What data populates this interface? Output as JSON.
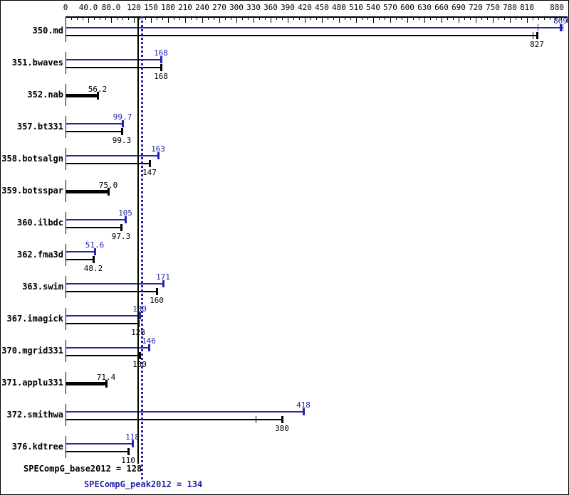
{
  "chart_data": {
    "type": "bar",
    "orientation": "horizontal",
    "title": "",
    "axis": {
      "min": 0,
      "max": 880,
      "minor_step": 10,
      "position": "top",
      "ticks": [
        {
          "v": 0,
          "label": "0"
        },
        {
          "v": 40,
          "label": "40.0"
        },
        {
          "v": 80,
          "label": "80.0"
        },
        {
          "v": 120,
          "label": "120"
        },
        {
          "v": 150,
          "label": "150"
        },
        {
          "v": 180,
          "label": "180"
        },
        {
          "v": 210,
          "label": "210"
        },
        {
          "v": 240,
          "label": "240"
        },
        {
          "v": 270,
          "label": "270"
        },
        {
          "v": 300,
          "label": "300"
        },
        {
          "v": 330,
          "label": "330"
        },
        {
          "v": 360,
          "label": "360"
        },
        {
          "v": 390,
          "label": "390"
        },
        {
          "v": 420,
          "label": "420"
        },
        {
          "v": 450,
          "label": "450"
        },
        {
          "v": 480,
          "label": "480"
        },
        {
          "v": 510,
          "label": "510"
        },
        {
          "v": 540,
          "label": "540"
        },
        {
          "v": 570,
          "label": "570"
        },
        {
          "v": 600,
          "label": "600"
        },
        {
          "v": 630,
          "label": "630"
        },
        {
          "v": 660,
          "label": "660"
        },
        {
          "v": 690,
          "label": "690"
        },
        {
          "v": 720,
          "label": "720"
        },
        {
          "v": 750,
          "label": "750"
        },
        {
          "v": 780,
          "label": "780"
        },
        {
          "v": 810,
          "label": "810"
        },
        {
          "v": 880,
          "label": "880"
        }
      ]
    },
    "series_colors": {
      "peak": "#2424ad",
      "base": "#000000"
    },
    "benchmarks": [
      {
        "name": "350.md",
        "peak": {
          "value": 869,
          "label": "869",
          "runmarks": [
            829,
            873
          ]
        },
        "base": {
          "value": 827,
          "label": "827",
          "runmarks": [
            820
          ]
        }
      },
      {
        "name": "351.bwaves",
        "peak": {
          "value": 168,
          "label": "168"
        },
        "base": {
          "value": 168,
          "label": "168"
        }
      },
      {
        "name": "352.nab",
        "peak": null,
        "base": {
          "value": 56.2,
          "label": "56.2"
        }
      },
      {
        "name": "357.bt331",
        "peak": {
          "value": 99.7,
          "label": "99.7"
        },
        "base": {
          "value": 99.3,
          "label": "99.3"
        }
      },
      {
        "name": "358.botsalgn",
        "peak": {
          "value": 163,
          "label": "163"
        },
        "base": {
          "value": 147,
          "label": "147"
        }
      },
      {
        "name": "359.botsspar",
        "peak": null,
        "base": {
          "value": 75,
          "label": "75.0"
        }
      },
      {
        "name": "360.ilbdc",
        "peak": {
          "value": 105,
          "label": "105"
        },
        "base": {
          "value": 97.3,
          "label": "97.3"
        }
      },
      {
        "name": "362.fma3d",
        "peak": {
          "value": 51.6,
          "label": "51.6"
        },
        "base": {
          "value": 48.2,
          "label": "48.2"
        }
      },
      {
        "name": "363.swim",
        "peak": {
          "value": 171,
          "label": "171"
        },
        "base": {
          "value": 160,
          "label": "160"
        }
      },
      {
        "name": "367.imagick",
        "peak": {
          "value": 130,
          "label": "130"
        },
        "base": {
          "value": 128,
          "label": "128"
        }
      },
      {
        "name": "370.mgrid331",
        "peak": {
          "value": 146,
          "label": "146"
        },
        "base": {
          "value": 130,
          "label": "130"
        }
      },
      {
        "name": "371.applu331",
        "peak": null,
        "base": {
          "value": 71.4,
          "label": "71.4"
        }
      },
      {
        "name": "372.smithwa",
        "peak": {
          "value": 418,
          "label": "418"
        },
        "base": {
          "value": 380,
          "label": "380",
          "runmarks": [
            334
          ]
        }
      },
      {
        "name": "376.kdtree",
        "peak": {
          "value": 118,
          "label": "118"
        },
        "base": {
          "value": 110,
          "label": "110"
        }
      }
    ],
    "reference_lines": [
      {
        "id": "base",
        "value": 128,
        "style": "solid",
        "color": "#000000",
        "label": "SPECompG_base2012 = 128"
      },
      {
        "id": "peak",
        "value": 134,
        "style": "dotted",
        "color": "#2424ad",
        "label": "SPECompG_peak2012 = 134"
      }
    ]
  }
}
